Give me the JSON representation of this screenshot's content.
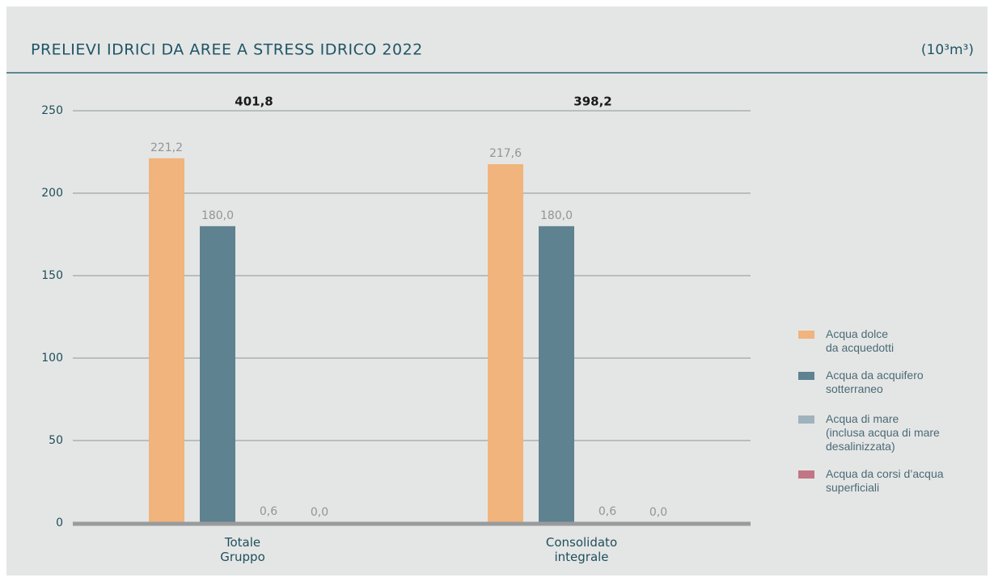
{
  "chart_data": {
    "type": "bar",
    "title": "PRELIEVI IDRICI DA AREE A STRESS IDRICO 2022",
    "unit": "(10³m³)",
    "categories": [
      "Totale\nGruppo",
      "Consolidato\nintegrale"
    ],
    "totals": {
      "values": [
        401.8,
        398.2
      ],
      "value_labels": [
        "401,8",
        "398,2"
      ]
    },
    "series": [
      {
        "name": "Acqua dolce\nda acquedotti",
        "color": "#f0b47c",
        "values": [
          221.2,
          217.6
        ],
        "value_labels": [
          "221,2",
          "217,6"
        ]
      },
      {
        "name": "Acqua da acquifero\nsotterraneo",
        "color": "#5f8291",
        "values": [
          180.0,
          180.0
        ],
        "value_labels": [
          "180,0",
          "180,0"
        ]
      },
      {
        "name": "Acqua di mare\n(inclusa acqua di mare\ndesalinizzata)",
        "color": "#9fb3bd",
        "values": [
          0.6,
          0.6
        ],
        "value_labels": [
          "0,6",
          "0,6"
        ]
      },
      {
        "name": "Acqua da corsi d’acqua\nsuperficiali",
        "color": "#c27584",
        "values": [
          0.0,
          0.0
        ],
        "value_labels": [
          "0,0",
          "0,0"
        ]
      }
    ],
    "ylim": [
      0,
      250
    ],
    "yticks": [
      0,
      50,
      100,
      150,
      200,
      250
    ],
    "grid": true,
    "legend": "right"
  }
}
